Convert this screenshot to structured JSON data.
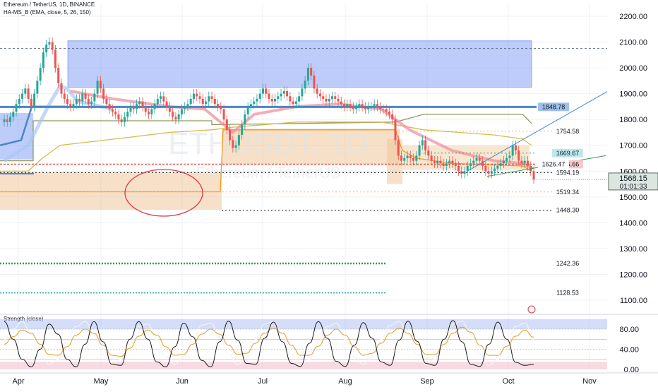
{
  "header": {
    "symbol_line": "Ethereum / TetherUS, 1D, BINANCE",
    "indicator_line": "HA-MS_B (EMA, close, 5, 26, 150)"
  },
  "watermark": {
    "ticker": "ETHUSDT, 1D",
    "name": "Ethereum / TetherUS"
  },
  "colors": {
    "candle_up": "#26a69a",
    "candle_down": "#ef5350",
    "blue_zone": "#6f8ff5",
    "orange_zone": "#f0c79a",
    "steel_blue": "#4a86c5",
    "olive": "#8b9a5e",
    "yellow": "#d4bc4e",
    "orange": "#f59c1a",
    "green_line": "#2e9e4f",
    "teal_line": "#26a69a",
    "pink_ma": "#ef8a9a",
    "red_circle": "#e0354a",
    "price_badge": "#2f2f2f",
    "strength_white": "#f4f4f4",
    "strength_black": "#1b1b1b"
  },
  "chart_data": {
    "type": "line",
    "title": "Ethereum / TetherUS, 1D, BINANCE",
    "x_tick_labels": [
      "Apr",
      "May",
      "Jun",
      "Jul",
      "Aug",
      "Sep",
      "Oct",
      "Nov"
    ],
    "y_tick_labels": [
      "2200.00",
      "2100.00",
      "2000.00",
      "1900.00",
      "1800.00",
      "1700.00",
      "1600.00",
      "1500.00",
      "1400.00",
      "1300.00",
      "1200.00",
      "1100.00"
    ],
    "ylim": [
      1050,
      2220
    ],
    "y_ticks": [
      2200,
      2100,
      2000,
      1900,
      1800,
      1700,
      1600,
      1500,
      1400,
      1300,
      1200,
      1100
    ],
    "last_price": "1568.15",
    "countdown": "01:01:33",
    "price_levels": [
      {
        "value": 2075,
        "label": ""
      },
      {
        "value": 1848.78,
        "label": "1848.78"
      },
      {
        "value": 1754.58,
        "label": "1754.58"
      },
      {
        "value": 1669.67,
        "label": "1669.67"
      },
      {
        "value": 1626.66,
        "label": "1626.66"
      },
      {
        "value": 1626.47,
        "label": "1626.47"
      },
      {
        "value": 1594.19,
        "label": "1594.19"
      },
      {
        "value": 1519.34,
        "label": "1519.34"
      },
      {
        "value": 1448.3,
        "label": "1448.30"
      },
      {
        "value": 1242.36,
        "label": "1242.36"
      },
      {
        "value": 1128.53,
        "label": "1128.53"
      }
    ],
    "price_series_close": [
      1800,
      1790,
      1810,
      1830,
      1860,
      1880,
      1900,
      1920,
      1880,
      1850,
      1900,
      1950,
      2000,
      2060,
      2090,
      2100,
      2070,
      2000,
      1940,
      1900,
      1880,
      1860,
      1850,
      1860,
      1880,
      1870,
      1900,
      1880,
      1860,
      1870,
      1900,
      1950,
      1920,
      1880,
      1860,
      1840,
      1830,
      1820,
      1800,
      1790,
      1810,
      1830,
      1850,
      1840,
      1860,
      1870,
      1850,
      1830,
      1820,
      1840,
      1860,
      1880,
      1890,
      1870,
      1850,
      1830,
      1810,
      1800,
      1820,
      1840,
      1850,
      1860,
      1880,
      1900,
      1890,
      1880,
      1860,
      1870,
      1890,
      1880,
      1860,
      1850,
      1840,
      1800,
      1760,
      1720,
      1690,
      1700,
      1740,
      1780,
      1820,
      1850,
      1860,
      1870,
      1880,
      1900,
      1920,
      1900,
      1880,
      1870,
      1880,
      1890,
      1900,
      1910,
      1890,
      1870,
      1860,
      1870,
      1890,
      1920,
      1950,
      2000,
      1970,
      1920,
      1900,
      1890,
      1880,
      1870,
      1880,
      1890,
      1880,
      1870,
      1860,
      1850,
      1860,
      1850,
      1840,
      1850,
      1860,
      1850,
      1840,
      1850,
      1850,
      1860,
      1850,
      1840,
      1840,
      1830,
      1820,
      1800,
      1720,
      1660,
      1640,
      1650,
      1660,
      1650,
      1640,
      1660,
      1700,
      1720,
      1680,
      1660,
      1640,
      1630,
      1640,
      1630,
      1620,
      1630,
      1640,
      1630,
      1620,
      1600,
      1590,
      1600,
      1620,
      1630,
      1640,
      1650,
      1640,
      1620,
      1600,
      1590,
      1600,
      1610,
      1620,
      1630,
      1640,
      1650,
      1660,
      1700,
      1680,
      1640,
      1630,
      1640,
      1620,
      1600,
      1568
    ],
    "strength_ticks": [
      "80.00",
      "40.00",
      "0.00"
    ],
    "strength_ylim": [
      -5,
      105
    ],
    "strength_tick_values": [
      80,
      40,
      0
    ],
    "strength_white": [
      60,
      80,
      95,
      70,
      30,
      10,
      20,
      55,
      85,
      95,
      70,
      30,
      8,
      20,
      50,
      85,
      90,
      60,
      25,
      10,
      25,
      60,
      88,
      92,
      65,
      30,
      10,
      25,
      60,
      90,
      95,
      70,
      30,
      8,
      20,
      55,
      85,
      92,
      60,
      25,
      10,
      25,
      60,
      88,
      95,
      70,
      30,
      10,
      20,
      60,
      90,
      96,
      70,
      30,
      8,
      20,
      55,
      85,
      92,
      60
    ],
    "strength_yellow": [
      50,
      65,
      78,
      72,
      50,
      30,
      28,
      45,
      68,
      80,
      72,
      48,
      28,
      26,
      42,
      66,
      78,
      68,
      45,
      28,
      30,
      50,
      70,
      80,
      70,
      48,
      30,
      32,
      52,
      72,
      82,
      72,
      48,
      28,
      28,
      46,
      68,
      80,
      68,
      45,
      28,
      32,
      52,
      72,
      82,
      72,
      50,
      30,
      30,
      50,
      72,
      84,
      74,
      48,
      28,
      28,
      46,
      66,
      78,
      64
    ],
    "strength_black": [
      95,
      60,
      20,
      5,
      40,
      90,
      70,
      20,
      5,
      50,
      95,
      55,
      10,
      8,
      60,
      95,
      60,
      15,
      5,
      45,
      92,
      65,
      18,
      5,
      55,
      96,
      58,
      12,
      10,
      62,
      94,
      55,
      12,
      6,
      52,
      95,
      62,
      16,
      6,
      48,
      93,
      62,
      15,
      8,
      58,
      96,
      56,
      12,
      8,
      60,
      97,
      55,
      10,
      6,
      50,
      94,
      60,
      14,
      8,
      10
    ]
  }
}
